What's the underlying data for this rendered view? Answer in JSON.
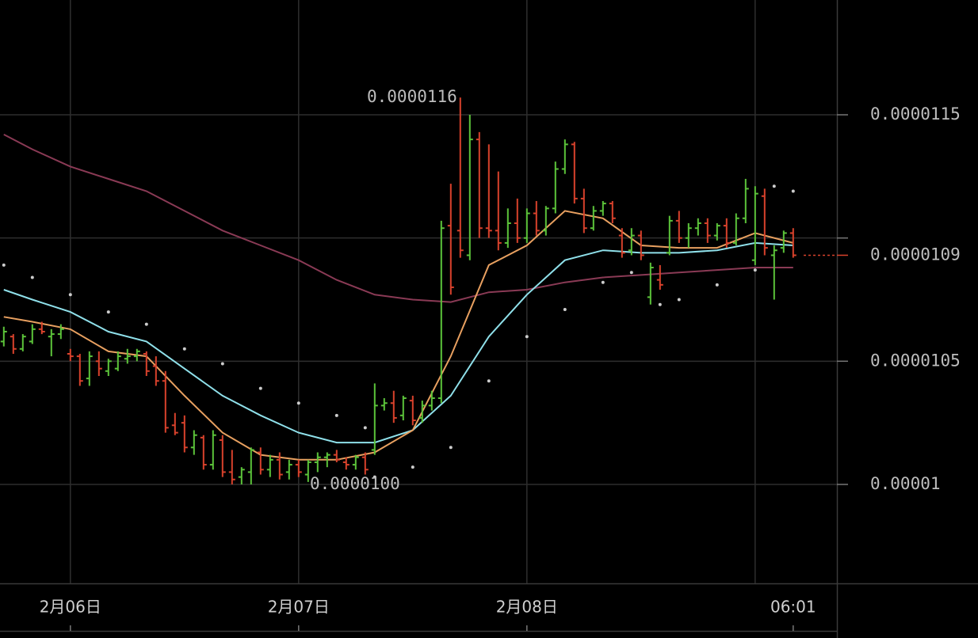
{
  "chart_data": {
    "type": "ohlc",
    "up_color": "#5cc43a",
    "down_color": "#d9422c",
    "x": [
      -7,
      -6,
      -5,
      -4,
      -3,
      -2,
      -1,
      0,
      1,
      2,
      3,
      4,
      5,
      6,
      7,
      8,
      9,
      10,
      11,
      12,
      13,
      14,
      15,
      16,
      17,
      18,
      19,
      20,
      21,
      22,
      23,
      24,
      25,
      26,
      27,
      28,
      29,
      30,
      31,
      32,
      33,
      34,
      35,
      36,
      37,
      38,
      39,
      40,
      41,
      42,
      43,
      44,
      45,
      46,
      47,
      48,
      49,
      50,
      51,
      52,
      53,
      54,
      55,
      56,
      57,
      58,
      59,
      60,
      61,
      62,
      63,
      64,
      65,
      66,
      67,
      68,
      69,
      70,
      71,
      72,
      73,
      74,
      75,
      76
    ],
    "open": [
      1.058e-05,
      1.06e-05,
      1.055e-05,
      1.058e-05,
      1.063e-05,
      1.06e-05,
      1.061e-05,
      1.053e-05,
      1.052e-05,
      1.043e-05,
      1.05e-05,
      1.046e-05,
      1.047e-05,
      1.051e-05,
      1.052e-05,
      1.053e-05,
      1.048e-05,
      1.042e-05,
      1.024e-05,
      1.025e-05,
      1.015e-05,
      1.019e-05,
      1.008e-05,
      1.018e-05,
      1.005e-05,
      1.003e-05,
      1.005e-05,
      1.013e-05,
      1.006e-05,
      1.01e-05,
      1.005e-05,
      1.008e-05,
      1.004e-05,
      1.009e-05,
      1.011e-05,
      1.012e-05,
      1.009e-05,
      1.008e-05,
      1.011e-05,
      1.014e-05,
      1.032e-05,
      1.033e-05,
      1.028e-05,
      1.034e-05,
      1.027e-05,
      1.032e-05,
      1.035e-05,
      1.105e-05,
      1.103e-05,
      1.093e-05,
      1.14e-05,
      1.104e-05,
      1.103e-05,
      1.098e-05,
      1.106e-05,
      1.1e-05,
      1.11e-05,
      1.103e-05,
      1.112e-05,
      1.128e-05,
      1.138e-05,
      1.116e-05,
      1.104e-05,
      1.111e-05,
      1.114e-05,
      1.101e-05,
      1.095e-05,
      1.101e-05,
      1.076e-05,
      1.083e-05,
      1.094e-05,
      1.107e-05,
      1.1e-05,
      1.104e-05,
      1.106e-05,
      1.101e-05,
      1.105e-05,
      1.098e-05,
      1.108e-05,
      1.091e-05,
      1.117e-05,
      1.093e-05,
      1.096e-05,
      1.102e-05
    ],
    "high": [
      1.064e-05,
      1.061e-05,
      1.061e-05,
      1.065e-05,
      1.066e-05,
      1.063e-05,
      1.065e-05,
      1.055e-05,
      1.053e-05,
      1.054e-05,
      1.054e-05,
      1.051e-05,
      1.054e-05,
      1.055e-05,
      1.055e-05,
      1.054e-05,
      1.052e-05,
      1.046e-05,
      1.029e-05,
      1.028e-05,
      1.022e-05,
      1.02e-05,
      1.022e-05,
      1.02e-05,
      1.014e-05,
      1.007e-05,
      1.015e-05,
      1.015e-05,
      1.012e-05,
      1.013e-05,
      1.01e-05,
      1.01e-05,
      1.01e-05,
      1.013e-05,
      1.013e-05,
      1.014e-05,
      1.011e-05,
      1.012e-05,
      1.013e-05,
      1.041e-05,
      1.035e-05,
      1.038e-05,
      1.036e-05,
      1.036e-05,
      1.034e-05,
      1.038e-05,
      1.107e-05,
      1.122e-05,
      1.157e-05,
      1.15e-05,
      1.143e-05,
      1.138e-05,
      1.127e-05,
      1.112e-05,
      1.116e-05,
      1.112e-05,
      1.115e-05,
      1.113e-05,
      1.131e-05,
      1.14e-05,
      1.139e-05,
      1.12e-05,
      1.113e-05,
      1.115e-05,
      1.115e-05,
      1.104e-05,
      1.104e-05,
      1.103e-05,
      1.09e-05,
      1.089e-05,
      1.109e-05,
      1.111e-05,
      1.106e-05,
      1.108e-05,
      1.108e-05,
      1.106e-05,
      1.108e-05,
      1.11e-05,
      1.124e-05,
      1.121e-05,
      1.12e-05,
      1.097e-05,
      1.103e-05,
      1.104e-05
    ],
    "low": [
      1.056e-05,
      1.053e-05,
      1.054e-05,
      1.057e-05,
      1.061e-05,
      1.052e-05,
      1.059e-05,
      1.05e-05,
      1.04e-05,
      1.04e-05,
      1.044e-05,
      1.044e-05,
      1.046e-05,
      1.049e-05,
      1.05e-05,
      1.044e-05,
      1.04e-05,
      1.021e-05,
      1.02e-05,
      1.013e-05,
      1.012e-05,
      1.006e-05,
      1.006e-05,
      1.003e-05,
      1e-05,
      1e-05,
      1e-05,
      1.004e-05,
      1.003e-05,
      1.002e-05,
      1.002e-05,
      1.003e-05,
      1.001e-05,
      1.005e-05,
      1.007e-05,
      1.009e-05,
      1.006e-05,
      1.006e-05,
      1.004e-05,
      1.012e-05,
      1.03e-05,
      1.025e-05,
      1.026e-05,
      1.024e-05,
      1.025e-05,
      1.03e-05,
      1.033e-05,
      1.077e-05,
      1.092e-05,
      1.091e-05,
      1.1e-05,
      1.1e-05,
      1.095e-05,
      1.096e-05,
      1.098e-05,
      1.098e-05,
      1.101e-05,
      1.101e-05,
      1.11e-05,
      1.126e-05,
      1.114e-05,
      1.102e-05,
      1.103e-05,
      1.109e-05,
      1.106e-05,
      1.092e-05,
      1.093e-05,
      1.091e-05,
      1.073e-05,
      1.079e-05,
      1.093e-05,
      1.098e-05,
      1.096e-05,
      1.101e-05,
      1.098e-05,
      1.099e-05,
      1.096e-05,
      1.097e-05,
      1.106e-05,
      1.089e-05,
      1.093e-05,
      1.075e-05,
      1.094e-05,
      1.092e-05
    ],
    "close": [
      1.062e-05,
      1.055e-05,
      1.06e-05,
      1.063e-05,
      1.062e-05,
      1.061e-05,
      1.063e-05,
      1.052e-05,
      1.042e-05,
      1.052e-05,
      1.047e-05,
      1.05e-05,
      1.052e-05,
      1.052e-05,
      1.054e-05,
      1.046e-05,
      1.042e-05,
      1.023e-05,
      1.021e-05,
      1.015e-05,
      1.02e-05,
      1.008e-05,
      1.02e-05,
      1.005e-05,
      1.002e-05,
      1.006e-05,
      1.014e-05,
      1.006e-05,
      1.01e-05,
      1.004e-05,
      1.008e-05,
      1.005e-05,
      1.009e-05,
      1.011e-05,
      1.012e-05,
      1.01e-05,
      1.008e-05,
      1.011e-05,
      1.006e-05,
      1.032e-05,
      1.033e-05,
      1.027e-05,
      1.035e-05,
      1.026e-05,
      1.032e-05,
      1.035e-05,
      1.104e-05,
      1.08e-05,
      1.095e-05,
      1.14e-05,
      1.104e-05,
      1.103e-05,
      1.098e-05,
      1.106e-05,
      1.1e-05,
      1.11e-05,
      1.103e-05,
      1.112e-05,
      1.128e-05,
      1.138e-05,
      1.116e-05,
      1.104e-05,
      1.111e-05,
      1.114e-05,
      1.108e-05,
      1.094e-05,
      1.101e-05,
      1.093e-05,
      1.088e-05,
      1.081e-05,
      1.107e-05,
      1.1e-05,
      1.104e-05,
      1.106e-05,
      1.101e-05,
      1.105e-05,
      1.098e-05,
      1.108e-05,
      1.12e-05,
      1.118e-05,
      1.096e-05,
      1.095e-05,
      1.102e-05,
      1.093e-05
    ],
    "overlays": [
      {
        "color": "#8a3a55",
        "x": [
          -7,
          -4,
          0,
          4,
          8,
          12,
          16,
          20,
          24,
          28,
          32,
          36,
          40,
          44,
          48,
          52,
          56,
          60,
          64,
          68,
          72,
          76
        ],
        "values": [
          1.142e-05,
          1.136e-05,
          1.129e-05,
          1.124e-05,
          1.119e-05,
          1.111e-05,
          1.103e-05,
          1.097e-05,
          1.091e-05,
          1.083e-05,
          1.077e-05,
          1.075e-05,
          1.074e-05,
          1.078e-05,
          1.079e-05,
          1.082e-05,
          1.084e-05,
          1.085e-05,
          1.086e-05,
          1.087e-05,
          1.088e-05,
          1.088e-05
        ]
      },
      {
        "color": "#8fe0ea",
        "x": [
          -7,
          -4,
          0,
          4,
          8,
          12,
          16,
          20,
          24,
          28,
          32,
          36,
          40,
          44,
          48,
          52,
          56,
          60,
          64,
          68,
          72,
          76
        ],
        "values": [
          1.079e-05,
          1.075e-05,
          1.07e-05,
          1.062e-05,
          1.058e-05,
          1.047e-05,
          1.036e-05,
          1.028e-05,
          1.021e-05,
          1.017e-05,
          1.017e-05,
          1.022e-05,
          1.036e-05,
          1.06e-05,
          1.077e-05,
          1.091e-05,
          1.095e-05,
          1.094e-05,
          1.094e-05,
          1.095e-05,
          1.098e-05,
          1.097e-05
        ]
      },
      {
        "color": "#e8a060",
        "x": [
          -7,
          -4,
          0,
          4,
          8,
          12,
          16,
          20,
          24,
          28,
          32,
          36,
          40,
          44,
          48,
          52,
          56,
          60,
          64,
          68,
          72,
          76
        ],
        "values": [
          1.068e-05,
          1.066e-05,
          1.063e-05,
          1.054e-05,
          1.052e-05,
          1.036e-05,
          1.021e-05,
          1.012e-05,
          1.01e-05,
          1.01e-05,
          1.013e-05,
          1.022e-05,
          1.052e-05,
          1.089e-05,
          1.097e-05,
          1.111e-05,
          1.108e-05,
          1.097e-05,
          1.096e-05,
          1.096e-05,
          1.102e-05,
          1.098e-05
        ]
      }
    ],
    "sar": {
      "color": "#cccccc",
      "x": [
        -7,
        -4,
        0,
        4,
        8,
        12,
        16,
        20,
        24,
        28,
        31,
        32,
        36,
        40,
        44,
        48,
        52,
        56,
        59,
        62,
        64,
        68,
        72,
        74,
        76
      ],
      "values": [
        1.089e-05,
        1.084e-05,
        1.077e-05,
        1.07e-05,
        1.065e-05,
        1.055e-05,
        1.049e-05,
        1.039e-05,
        1.033e-05,
        1.028e-05,
        1.023e-05,
        1.003e-05,
        1.007e-05,
        1.015e-05,
        1.042e-05,
        1.06e-05,
        1.071e-05,
        1.082e-05,
        1.086e-05,
        1.073e-05,
        1.075e-05,
        1.081e-05,
        1.087e-05,
        1.121e-05,
        1.119e-05
      ]
    },
    "annotations": [
      {
        "label": "0.0000116",
        "x": 41,
        "y": 1.157e-05
      },
      {
        "label": "0.0000100",
        "x": 35,
        "y": 1e-05
      }
    ],
    "last_price": {
      "value": 1.093e-05,
      "label": "0.0000109",
      "color": "#d9422c"
    },
    "xlim": [
      -7.4,
      80.6
    ],
    "xticks": [
      {
        "value": 0,
        "label": "2月06日"
      },
      {
        "value": 24,
        "label": "2月07日"
      },
      {
        "value": 48,
        "label": "2月08日"
      },
      {
        "value": 76,
        "label": "06:01"
      }
    ],
    "xgrid": [
      0,
      24,
      48,
      72
    ],
    "ylim": [
      9.6e-06,
      1.19e-05
    ],
    "yticks": [
      1.15e-05,
      1.05e-05,
      1e-05
    ],
    "ygrid": [
      1.15e-05,
      1.1e-05,
      1.05e-05,
      1e-05
    ]
  }
}
